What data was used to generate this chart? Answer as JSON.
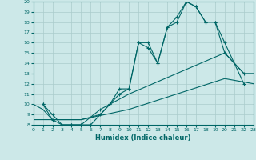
{
  "xlabel": "Humidex (Indice chaleur)",
  "bg_color": "#cce8e8",
  "grid_color": "#aacccc",
  "line_color": "#006666",
  "xlim": [
    0,
    23
  ],
  "ylim": [
    8,
    20
  ],
  "xticks": [
    0,
    1,
    2,
    3,
    4,
    5,
    6,
    7,
    8,
    9,
    10,
    11,
    12,
    13,
    14,
    15,
    16,
    17,
    18,
    19,
    20,
    21,
    22,
    23
  ],
  "yticks": [
    8,
    9,
    10,
    11,
    12,
    13,
    14,
    15,
    16,
    17,
    18,
    19,
    20
  ],
  "line1_x": [
    1,
    2,
    3,
    4,
    5,
    6,
    7,
    8,
    9,
    10,
    11,
    12,
    13,
    14,
    15,
    16,
    17,
    18,
    19,
    20,
    22
  ],
  "line1_y": [
    10,
    9,
    8,
    8,
    8,
    8,
    9,
    10,
    11,
    11.5,
    16,
    16,
    14,
    17.5,
    18.5,
    20,
    19.5,
    18,
    18,
    16,
    12
  ],
  "line2_x": [
    1,
    2,
    3,
    4,
    5,
    7,
    8,
    9,
    10,
    11,
    12,
    13,
    14,
    15,
    16,
    17,
    18,
    19,
    20,
    22
  ],
  "line2_y": [
    10,
    8.5,
    8,
    8,
    8,
    9.5,
    10,
    11.5,
    11.5,
    16,
    15.5,
    14,
    17.5,
    18,
    20,
    19.5,
    18,
    18,
    15,
    13
  ],
  "line3_x": [
    0,
    1,
    2,
    3,
    4,
    5,
    7,
    8,
    10,
    15,
    20,
    22,
    23
  ],
  "line3_y": [
    10,
    9.5,
    8.5,
    8.5,
    8.5,
    8.5,
    9,
    10,
    11,
    13,
    15,
    13,
    13
  ],
  "line4_x": [
    0,
    5,
    10,
    15,
    20,
    23
  ],
  "line4_y": [
    8.5,
    8.5,
    9.5,
    11,
    12.5,
    12
  ]
}
